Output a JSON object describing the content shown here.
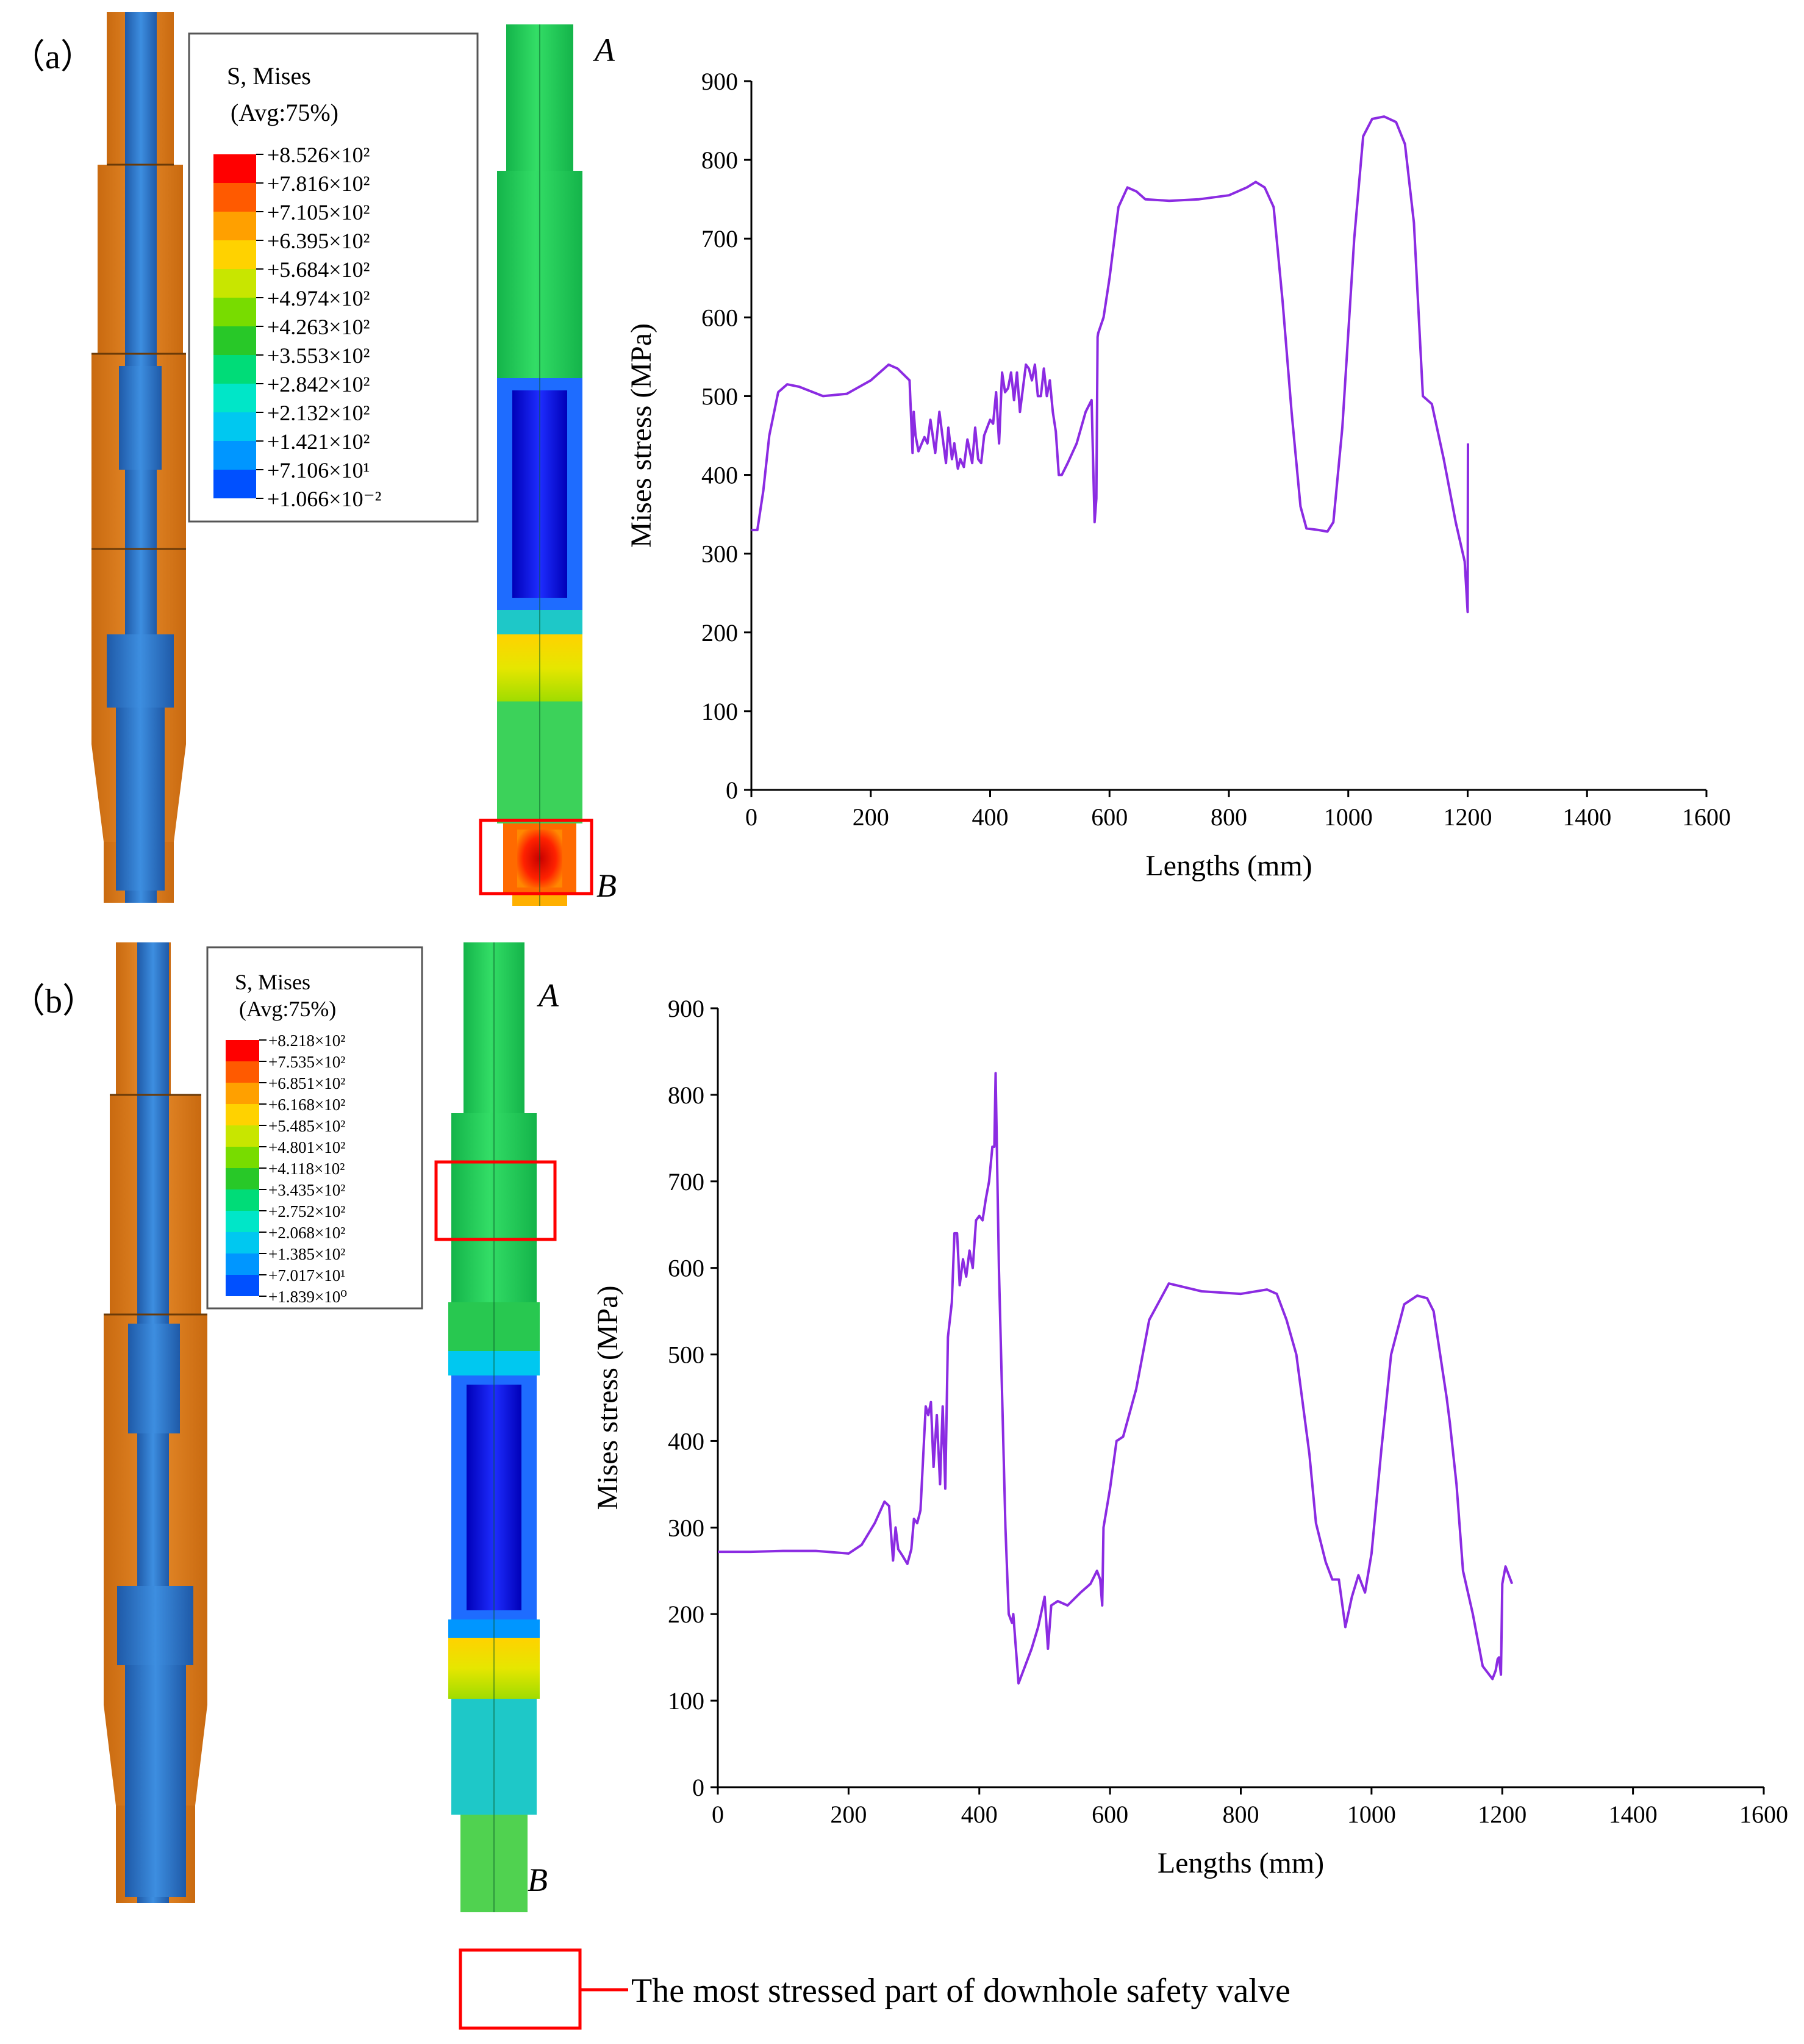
{
  "figure": {
    "panels": [
      {
        "label": "（a）",
        "model_labels": {
          "top": "A",
          "bottom": "B"
        },
        "contour_legend": {
          "title_line1": "S, Mises",
          "title_line2": "(Avg:75%)",
          "entries": [
            {
              "text": "+8.526×10²",
              "color": "#ff0000"
            },
            {
              "text": "+7.816×10²",
              "color": "#ff5a00"
            },
            {
              "text": "+7.105×10²",
              "color": "#ffa000"
            },
            {
              "text": "+6.395×10²",
              "color": "#ffd200"
            },
            {
              "text": "+5.684×10²",
              "color": "#c8e600"
            },
            {
              "text": "+4.974×10²",
              "color": "#78dc00"
            },
            {
              "text": "+4.263×10²",
              "color": "#28c828"
            },
            {
              "text": "+3.553×10²",
              "color": "#00dc78"
            },
            {
              "text": "+2.842×10²",
              "color": "#00e6c8"
            },
            {
              "text": "+2.132×10²",
              "color": "#00c8f0"
            },
            {
              "text": "+1.421×10²",
              "color": "#0096ff"
            },
            {
              "text": "+7.106×10¹",
              "color": "#0050ff"
            },
            {
              "text": "+1.066×10⁻²",
              "color": "#0000ff"
            }
          ]
        }
      },
      {
        "label": "（b）",
        "model_labels": {
          "top": "A",
          "bottom": "B"
        },
        "contour_legend": {
          "title_line1": "S, Mises",
          "title_line2": "(Avg:75%)",
          "entries": [
            {
              "text": "+8.218×10²",
              "color": "#ff0000"
            },
            {
              "text": "+7.535×10²",
              "color": "#ff5a00"
            },
            {
              "text": "+6.851×10²",
              "color": "#ffa000"
            },
            {
              "text": "+6.168×10²",
              "color": "#ffd200"
            },
            {
              "text": "+5.485×10²",
              "color": "#c8e600"
            },
            {
              "text": "+4.801×10²",
              "color": "#78dc00"
            },
            {
              "text": "+4.118×10²",
              "color": "#28c828"
            },
            {
              "text": "+3.435×10²",
              "color": "#00dc78"
            },
            {
              "text": "+2.752×10²",
              "color": "#00e6c8"
            },
            {
              "text": "+2.068×10²",
              "color": "#00c8f0"
            },
            {
              "text": "+1.385×10²",
              "color": "#0096ff"
            },
            {
              "text": "+7.017×10¹",
              "color": "#0050ff"
            },
            {
              "text": "+1.839×10⁰",
              "color": "#0000ff"
            }
          ]
        }
      }
    ],
    "bottom_legend": {
      "text": "The most stressed part of downhole safety valve",
      "box_color": "#ff0000"
    }
  },
  "chart_data": [
    {
      "type": "line",
      "panel": "a",
      "xlabel": "Lengths (mm)",
      "ylabel": "Mises stress (MPa)",
      "xlim": [
        0,
        1600
      ],
      "ylim": [
        0,
        900
      ],
      "xticks": [
        "0",
        "200",
        "400",
        "600",
        "800",
        "1000",
        "1200",
        "1400",
        "1600"
      ],
      "yticks": [
        "0",
        "100",
        "200",
        "300",
        "400",
        "500",
        "600",
        "700",
        "800",
        "900"
      ],
      "series": [
        {
          "name": "Mises stress",
          "color": "#8b2be2",
          "x": [
            0,
            10,
            20,
            30,
            45,
            60,
            80,
            120,
            160,
            200,
            230,
            245,
            265,
            270,
            272,
            275,
            280,
            290,
            295,
            300,
            308,
            315,
            320,
            326,
            330,
            336,
            340,
            346,
            350,
            356,
            362,
            370,
            375,
            380,
            385,
            390,
            395,
            400,
            405,
            410,
            415,
            420,
            425,
            430,
            435,
            440,
            445,
            450,
            455,
            460,
            465,
            470,
            475,
            480,
            485,
            490,
            495,
            500,
            505,
            510,
            515,
            520,
            530,
            545,
            560,
            570,
            575,
            578,
            580,
            581,
            590,
            600,
            615,
            630,
            645,
            660,
            700,
            750,
            800,
            830,
            845,
            860,
            875,
            890,
            905,
            920,
            930,
            950,
            965,
            975,
            990,
            1010,
            1025,
            1040,
            1060,
            1080,
            1095,
            1110,
            1125,
            1140,
            1160,
            1180,
            1195,
            1200,
            1200.5
          ],
          "y": [
            330,
            330,
            380,
            450,
            505,
            515,
            512,
            500,
            503,
            520,
            540,
            535,
            520,
            428,
            480,
            450,
            430,
            448,
            440,
            470,
            428,
            480,
            450,
            415,
            460,
            420,
            440,
            408,
            420,
            410,
            445,
            415,
            460,
            420,
            415,
            450,
            460,
            470,
            465,
            505,
            440,
            530,
            505,
            510,
            530,
            495,
            530,
            480,
            510,
            540,
            535,
            520,
            540,
            500,
            500,
            535,
            500,
            520,
            480,
            455,
            400,
            400,
            415,
            440,
            480,
            495,
            340,
            370,
            575,
            580,
            600,
            650,
            740,
            765,
            760,
            750,
            748,
            750,
            755,
            765,
            772,
            765,
            740,
            620,
            480,
            360,
            332,
            330,
            328,
            340,
            460,
            700,
            830,
            852,
            855,
            848,
            820,
            720,
            500,
            490,
            420,
            340,
            290,
            226,
            440
          ]
        }
      ]
    },
    {
      "type": "line",
      "panel": "b",
      "xlabel": "Lengths (mm)",
      "ylabel": "Mises stress (MPa)",
      "xlim": [
        0,
        1600
      ],
      "ylim": [
        0,
        900
      ],
      "xticks": [
        "0",
        "200",
        "400",
        "600",
        "800",
        "1000",
        "1200",
        "1400",
        "1600"
      ],
      "yticks": [
        "0",
        "100",
        "200",
        "300",
        "400",
        "500",
        "600",
        "700",
        "800",
        "900"
      ],
      "series": [
        {
          "name": "Mises stress",
          "color": "#8b2be2",
          "x": [
            0,
            50,
            100,
            150,
            200,
            220,
            240,
            255,
            262,
            268,
            272,
            276,
            282,
            290,
            296,
            300,
            305,
            310,
            318,
            322,
            326,
            330,
            335,
            340,
            344,
            348,
            352,
            358,
            362,
            366,
            370,
            375,
            380,
            385,
            390,
            395,
            400,
            405,
            410,
            415,
            420,
            423,
            425,
            430,
            440,
            445,
            450,
            452,
            455,
            460,
            470,
            480,
            490,
            500,
            505,
            510,
            520,
            535,
            555,
            570,
            580,
            585,
            588,
            590,
            600,
            610,
            620,
            640,
            660,
            690,
            740,
            800,
            840,
            855,
            870,
            885,
            905,
            915,
            930,
            940,
            950,
            960,
            970,
            980,
            990,
            1000,
            1015,
            1030,
            1050,
            1070,
            1085,
            1095,
            1105,
            1115,
            1120,
            1130,
            1140,
            1155,
            1170,
            1185,
            1190,
            1193,
            1195,
            1198,
            1200,
            1205,
            1210,
            1215
          ],
          "y": [
            272,
            272,
            273,
            273,
            270,
            280,
            305,
            330,
            325,
            262,
            300,
            275,
            268,
            258,
            275,
            310,
            305,
            320,
            440,
            430,
            445,
            370,
            430,
            350,
            440,
            345,
            520,
            560,
            640,
            640,
            580,
            610,
            590,
            620,
            600,
            655,
            660,
            655,
            680,
            700,
            740,
            740,
            825,
            600,
            300,
            200,
            190,
            200,
            170,
            120,
            140,
            160,
            185,
            220,
            160,
            210,
            215,
            210,
            225,
            235,
            250,
            240,
            210,
            300,
            345,
            400,
            405,
            460,
            540,
            582,
            573,
            570,
            575,
            570,
            540,
            500,
            385,
            305,
            260,
            240,
            240,
            185,
            220,
            245,
            225,
            270,
            390,
            500,
            558,
            568,
            565,
            550,
            500,
            450,
            420,
            350,
            250,
            200,
            140,
            125,
            135,
            148,
            150,
            130,
            235,
            255,
            245,
            235
          ]
        }
      ]
    }
  ]
}
